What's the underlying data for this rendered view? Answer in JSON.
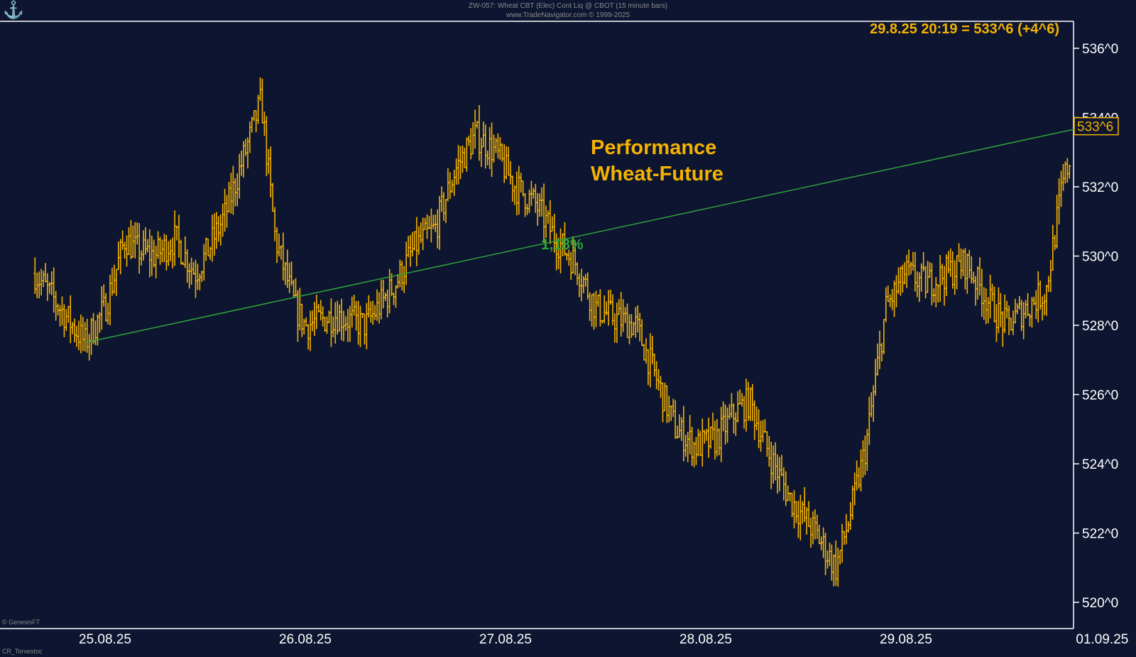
{
  "header": {
    "line1": "ZW-057: Wheat CBT (Elec) Cont Liq @ CBOT (15 minute bars)",
    "line2": "www.TradeNavigator.com © 1999-2025"
  },
  "quote_label": "29.8.25 20:19 = 533^6 (+4^6)",
  "annotation": {
    "line1": "Performance",
    "line2": "Wheat-Future",
    "change": "1,18%"
  },
  "last_price_label": "533^6",
  "footer_left": "© GenesisFT",
  "footer_bottom": "CR_Torvestoc",
  "logo_icon": "anchor-icon",
  "colors": {
    "background": "#0d1530",
    "bars": "#f5b300",
    "trendline": "#2fa33a",
    "axis": "#ffffff",
    "accent": "#f5b300"
  },
  "chart_data": {
    "type": "bar",
    "subtype": "ohlc-bars",
    "title": "ZW-057: Wheat CBT (Elec) Cont Liq @ CBOT (15 minute bars)",
    "ylim": [
      519.5,
      536.8
    ],
    "y_ticks": [
      "520^0",
      "522^0",
      "524^0",
      "526^0",
      "528^0",
      "530^0",
      "532^0",
      "534^0",
      "536^0"
    ],
    "y_tick_values": [
      520,
      522,
      524,
      526,
      528,
      530,
      532,
      534,
      536
    ],
    "x_ticks": [
      "25.08.25",
      "26.08.25",
      "27.08.25",
      "28.08.25",
      "29.08.25",
      "01.09.25"
    ],
    "x_range_days": [
      -0.33,
      5.05
    ],
    "trendline": {
      "start": [
        -0.1,
        527.5
      ],
      "end": [
        4.91,
        533.75
      ],
      "label": "1,18%"
    },
    "last_price": 533.75,
    "series_keypoints": [
      [
        -0.35,
        529.5
      ],
      [
        -0.1,
        527.5
      ],
      [
        0.0,
        528.5
      ],
      [
        0.1,
        530.5
      ],
      [
        0.15,
        530.2
      ],
      [
        0.25,
        530.0
      ],
      [
        0.35,
        530.5
      ],
      [
        0.45,
        529.5
      ],
      [
        0.5,
        530.0
      ],
      [
        0.6,
        531.2
      ],
      [
        0.7,
        533.0
      ],
      [
        0.78,
        534.5
      ],
      [
        0.85,
        530.5
      ],
      [
        0.95,
        528.5
      ],
      [
        1.0,
        528.0
      ],
      [
        1.15,
        528.3
      ],
      [
        1.3,
        528.0
      ],
      [
        1.45,
        529.2
      ],
      [
        1.55,
        530.3
      ],
      [
        1.65,
        530.8
      ],
      [
        1.75,
        532.5
      ],
      [
        1.85,
        533.5
      ],
      [
        1.95,
        533.0
      ],
      [
        2.05,
        532.0
      ],
      [
        2.15,
        531.5
      ],
      [
        2.25,
        530.5
      ],
      [
        2.35,
        529.8
      ],
      [
        2.45,
        528.5
      ],
      [
        2.55,
        528.2
      ],
      [
        2.65,
        528.0
      ],
      [
        2.75,
        526.5
      ],
      [
        2.85,
        525.0
      ],
      [
        2.95,
        524.5
      ],
      [
        3.05,
        524.7
      ],
      [
        3.15,
        525.5
      ],
      [
        3.22,
        525.8
      ],
      [
        3.3,
        524.5
      ],
      [
        3.42,
        523.0
      ],
      [
        3.55,
        522.0
      ],
      [
        3.65,
        521.0
      ],
      [
        3.72,
        522.5
      ],
      [
        3.8,
        524.5
      ],
      [
        3.9,
        528.5
      ],
      [
        4.0,
        529.5
      ],
      [
        4.1,
        529.2
      ],
      [
        4.2,
        529.5
      ],
      [
        4.3,
        529.8
      ],
      [
        4.4,
        528.8
      ],
      [
        4.5,
        528.0
      ],
      [
        4.6,
        528.5
      ],
      [
        4.7,
        529.0
      ],
      [
        4.78,
        532.0
      ],
      [
        4.85,
        533.5
      ],
      [
        4.91,
        533.75
      ]
    ]
  }
}
